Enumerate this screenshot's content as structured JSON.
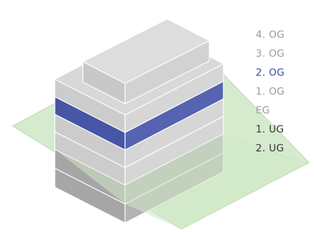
{
  "floors": [
    {
      "id": "og4",
      "label": "4. OG",
      "state": "default"
    },
    {
      "id": "og3",
      "label": "3. OG",
      "state": "default"
    },
    {
      "id": "og2",
      "label": "2. OG",
      "state": "selected"
    },
    {
      "id": "og1",
      "label": "1. OG",
      "state": "default"
    },
    {
      "id": "eg",
      "label": "EG",
      "state": "default"
    },
    {
      "id": "ug1",
      "label": "1. UG",
      "state": "below-ground"
    },
    {
      "id": "ug2",
      "label": "2. UG",
      "state": "below-ground"
    }
  ],
  "colors": {
    "default_label": "#9b9b9b",
    "selected_label": "#3a4fa0",
    "below_ground_label": "#333333",
    "selected_floor": "#4b5aa8",
    "above_ground_floor": "#d2d2d2",
    "below_ground_floor": "#a8a8a8",
    "ground_plane": "#cfe8c6"
  }
}
